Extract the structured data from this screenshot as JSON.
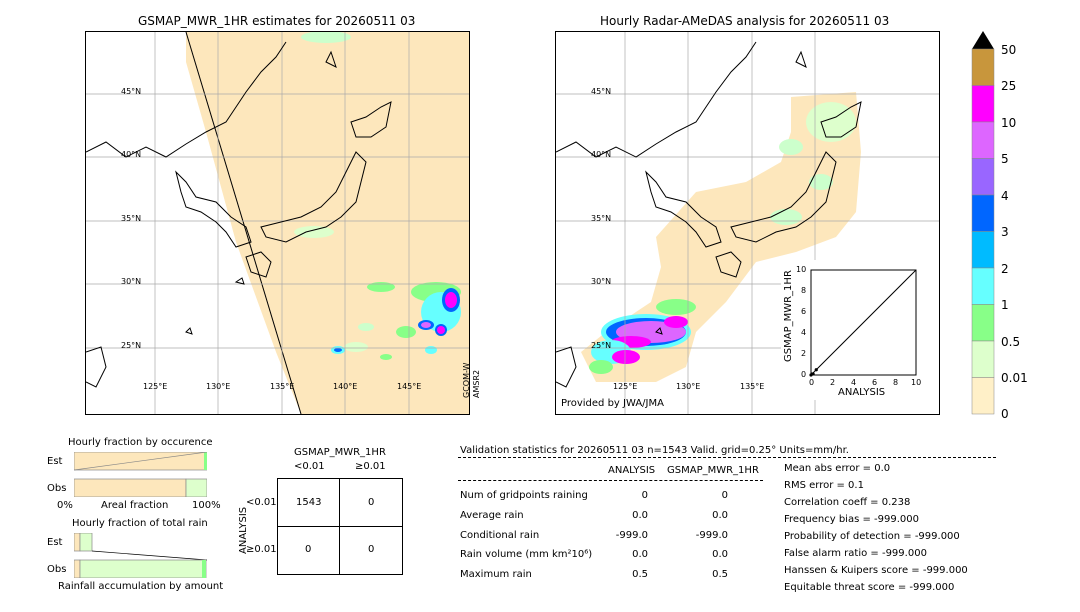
{
  "left_map": {
    "title": "GSMAP_MWR_1HR estimates for 20260511 03",
    "lat_labels": [
      "45°N",
      "40°N",
      "35°N",
      "30°N",
      "25°N"
    ],
    "lon_labels": [
      "125°E",
      "130°E",
      "135°E",
      "140°E",
      "145°E"
    ],
    "side_label_1": "GCOM-W",
    "side_label_2": "AMSR2"
  },
  "right_map": {
    "title": "Hourly Radar-AMeDAS analysis for 20260511 03",
    "lat_labels": [
      "45°N",
      "40°N",
      "35°N",
      "30°N",
      "25°N"
    ],
    "lon_labels": [
      "125°E",
      "130°E",
      "135°E"
    ],
    "credit": "Provided by JWA/JMA"
  },
  "inset": {
    "ylabel": "GSMAP_MWR_1HR",
    "xlabel": "ANALYSIS",
    "ticks": [
      "0",
      "2",
      "4",
      "6",
      "8",
      "10"
    ],
    "yticks": [
      "0",
      "2",
      "4",
      "6",
      "8",
      "10"
    ]
  },
  "colorbar": {
    "labels": [
      "50",
      "25",
      "10",
      "5",
      "4",
      "3",
      "2",
      "1",
      "0.5",
      "0.01",
      "0"
    ],
    "colors": [
      "#c8963c",
      "#ff00ff",
      "#dd66ff",
      "#9966ff",
      "#0066ff",
      "#00bbff",
      "#66ffff",
      "#88ff88",
      "#ddffcc",
      "#fff0c8"
    ]
  },
  "occurrence": {
    "title": "Hourly fraction by occurence",
    "row_est": "Est",
    "row_obs": "Obs",
    "axis_left": "0%",
    "axis_mid": "Areal fraction",
    "axis_right": "100%"
  },
  "total_rain": {
    "title": "Hourly fraction of total rain",
    "row_est": "Est",
    "row_obs": "Obs",
    "caption": "Rainfall accumulation by amount"
  },
  "contingency": {
    "title": "GSMAP_MWR_1HR",
    "col1": "<0.01",
    "col2": "≥0.01",
    "row_axis": "ANALYSIS",
    "row1": "<0.01",
    "row2": "≥0.01",
    "cells": [
      "1543",
      "0",
      "0",
      "0"
    ]
  },
  "validation": {
    "header": "Validation statistics for 20260511 03  n=1543 Valid. grid=0.25° Units=mm/hr.",
    "col_analysis": "ANALYSIS",
    "col_gsmap": "GSMAP_MWR_1HR",
    "rows": [
      {
        "label": "Num of gridpoints raining",
        "a": "0",
        "b": "0"
      },
      {
        "label": "Average rain",
        "a": "0.0",
        "b": "0.0"
      },
      {
        "label": "Conditional rain",
        "a": "-999.0",
        "b": "-999.0"
      },
      {
        "label": "Rain volume (mm km²10⁶)",
        "a": "0.0",
        "b": "0.0"
      },
      {
        "label": "Maximum rain",
        "a": "0.5",
        "b": "0.5"
      }
    ],
    "scores": [
      "Mean abs error =    0.0",
      "RMS error =    0.1",
      "Correlation coeff =  0.238",
      "Frequency bias = -999.000",
      "Probability of detection = -999.000",
      "False alarm ratio = -999.000",
      "Hanssen & Kuipers score = -999.000",
      "Equitable threat score = -999.000"
    ]
  },
  "chart_data": {
    "type": "scatter",
    "xlabel": "ANALYSIS",
    "ylabel": "GSMAP_MWR_1HR",
    "xlim": [
      0,
      10
    ],
    "ylim": [
      0,
      10
    ],
    "x": [
      0.0,
      0.1,
      0.2,
      0.5
    ],
    "y": [
      0.0,
      0.1,
      0.1,
      0.5
    ]
  }
}
